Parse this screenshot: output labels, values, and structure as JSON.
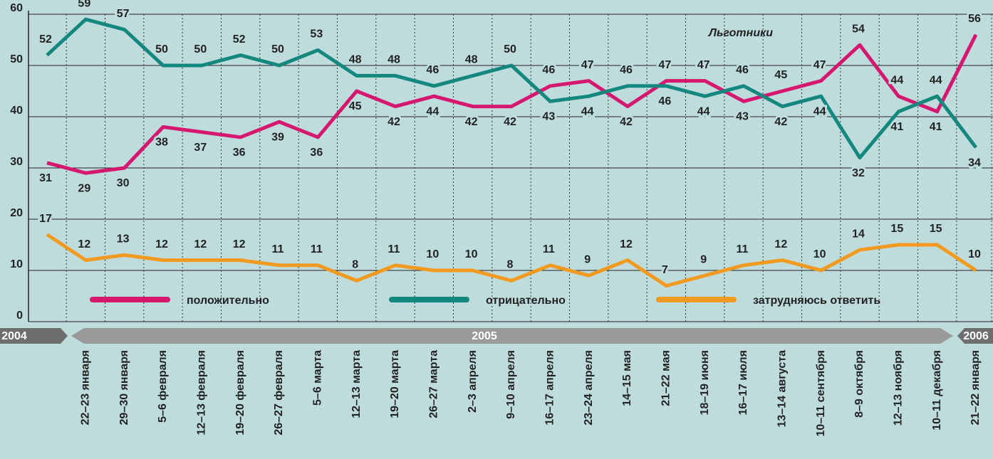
{
  "chart_data": {
    "type": "line",
    "title": "Льготники",
    "categories": [
      null,
      "22–23 января",
      "29–30 января",
      "5–6 февраля",
      "12–13 февраля",
      "19–20 февраля",
      "26–27 февраля",
      "5–6 марта",
      "12–13 марта",
      "19–20 марта",
      "26–27 марта",
      "2–3 апреля",
      "9–10 апреля",
      "16–17 апреля",
      "23–24 апреля",
      "14–15 мая",
      "21–22 мая",
      "18–19 июня",
      "16–17 июля",
      "13–14 августа",
      "10–11 сентября",
      "8–9 октября",
      "12–13 ноября",
      "10–11 декабря",
      "21–22 января"
    ],
    "years": [
      "2004",
      "2005",
      "2006"
    ],
    "series": [
      {
        "name": "положительно",
        "color": "#d6176f",
        "values": [
          31,
          29,
          30,
          38,
          37,
          36,
          39,
          36,
          45,
          42,
          44,
          42,
          42,
          46,
          47,
          42,
          47,
          47,
          43,
          45,
          47,
          54,
          44,
          41,
          56
        ]
      },
      {
        "name": "отрицательно",
        "color": "#14877e",
        "values": [
          52,
          59,
          57,
          50,
          50,
          52,
          50,
          53,
          48,
          48,
          46,
          48,
          50,
          43,
          44,
          46,
          46,
          44,
          46,
          42,
          44,
          32,
          41,
          44,
          34
        ]
      },
      {
        "name": "затрудняюсь ответить",
        "color": "#f29a1f",
        "values": [
          17,
          12,
          13,
          12,
          12,
          12,
          11,
          11,
          8,
          11,
          10,
          10,
          8,
          11,
          9,
          12,
          7,
          9,
          11,
          12,
          10,
          14,
          15,
          15,
          10
        ]
      }
    ],
    "ylim": [
      0,
      60
    ],
    "yticks": [
      0,
      10,
      20,
      30,
      40,
      50,
      60
    ],
    "grid": true,
    "legend": "bottom"
  }
}
